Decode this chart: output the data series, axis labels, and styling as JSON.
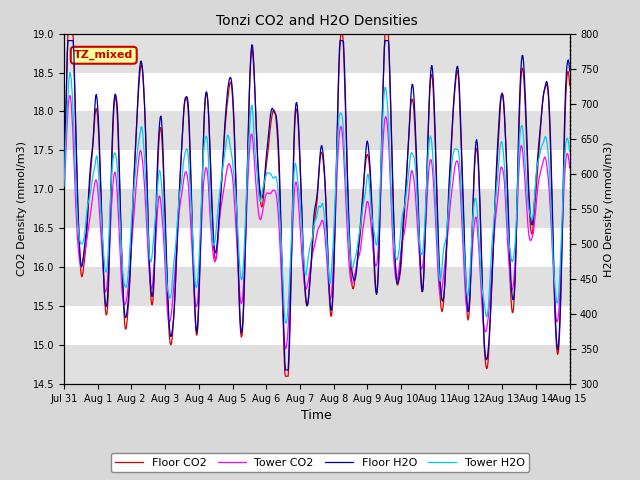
{
  "title": "Tonzi CO2 and H2O Densities",
  "xlabel": "Time",
  "ylabel_left": "CO2 Density (mmol/m3)",
  "ylabel_right": "H2O Density (mmol/m3)",
  "ylim_left": [
    14.5,
    19.0
  ],
  "ylim_right": [
    300,
    800
  ],
  "yticks_left": [
    14.5,
    15.0,
    15.5,
    16.0,
    16.5,
    17.0,
    17.5,
    18.0,
    18.5,
    19.0
  ],
  "yticks_right": [
    300,
    350,
    400,
    450,
    500,
    550,
    600,
    650,
    700,
    750,
    800
  ],
  "xtick_labels": [
    "Jul 31",
    "Aug 1",
    "Aug 2",
    "Aug 3",
    "Aug 4",
    "Aug 5",
    "Aug 6",
    "Aug 7",
    "Aug 8",
    "Aug 9",
    "Aug 10",
    "Aug 11",
    "Aug 12",
    "Aug 13",
    "Aug 14",
    "Aug 15"
  ],
  "annotation_text": "TZ_mixed",
  "annotation_color": "#cc0000",
  "annotation_bg": "#ffff99",
  "legend_labels": [
    "Floor CO2",
    "Tower CO2",
    "Floor H2O",
    "Tower H2O"
  ],
  "floor_co2_color": "#dd0000",
  "tower_co2_color": "#ff00ff",
  "floor_h2o_color": "#0000aa",
  "tower_h2o_color": "#00ccee",
  "fig_bg_color": "#d8d8d8",
  "plot_bg_color": "#ffffff",
  "band_color": "#e0e0e0",
  "n_points": 768,
  "seed": 7
}
